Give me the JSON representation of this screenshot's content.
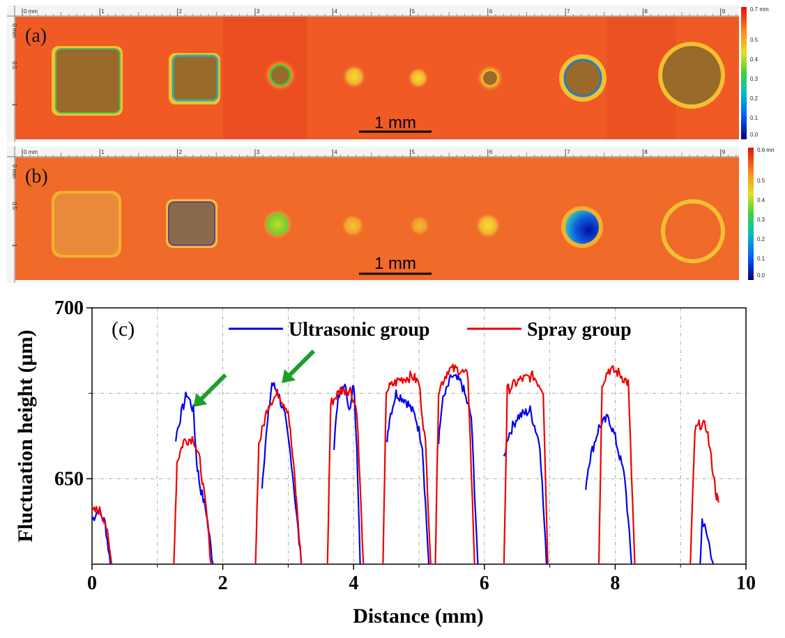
{
  "panel_a": {
    "label": "(a)",
    "ruler_ticks": [
      "0 mm",
      "1",
      "2",
      "3",
      "4",
      "5",
      "6",
      "7",
      "8",
      "9"
    ],
    "side_ticks": [
      "0 mm",
      "0.5",
      "1"
    ],
    "colorbar_labels": [
      "0.7 mm",
      "0.5",
      "0.4",
      "0.3",
      "0.2",
      "0.1",
      "0.0"
    ],
    "scale_bar": "1 mm"
  },
  "panel_b": {
    "label": "(b)",
    "ruler_ticks": [
      "0 mm",
      "1",
      "2",
      "3",
      "4",
      "5",
      "6",
      "7",
      "8",
      "9"
    ],
    "side_ticks": [
      "0 mm",
      "0.5",
      "1"
    ],
    "colorbar_labels": [
      "0.6 mm",
      "0.5",
      "0.4",
      "0.3",
      "0.2",
      "0.1",
      "0.0"
    ],
    "scale_bar": "1 mm"
  },
  "colors": {
    "map_bg": "#ef5a25",
    "crater": "#9a6a2a",
    "ultrasonic": "#0000ee",
    "spray": "#ee0000",
    "arrow": "#1e9e2a"
  },
  "chart_data": {
    "type": "line",
    "panel_label": "(c)",
    "xlabel": "Distance (mm)",
    "ylabel": "Fluctuation height (μm)",
    "xlim": [
      0,
      10
    ],
    "ylim": [
      625,
      700
    ],
    "xticks": [
      0,
      2,
      4,
      6,
      8,
      10
    ],
    "yticks": [
      650,
      700
    ],
    "grid": true,
    "legend": "top-center",
    "annotations": [
      {
        "type": "arrow",
        "x": 1.55,
        "y": 671
      },
      {
        "type": "arrow",
        "x": 2.9,
        "y": 678
      }
    ],
    "series": [
      {
        "name": "Ultrasonic group",
        "color": "#0000ee",
        "segments": [
          {
            "x": [
              0.0,
              0.1,
              0.2,
              0.28
            ],
            "y": [
              638,
              641,
              637,
              625
            ]
          },
          {
            "x": [
              1.28,
              1.35,
              1.45,
              1.55,
              1.6,
              1.65,
              1.75,
              1.85
            ],
            "y": [
              662,
              668,
              675,
              670,
              655,
              648,
              640,
              625
            ]
          },
          {
            "x": [
              2.6,
              2.65,
              2.75,
              2.85,
              2.95,
              3.05,
              3.2
            ],
            "y": [
              648,
              660,
              678,
              675,
              668,
              655,
              625
            ]
          },
          {
            "x": [
              3.7,
              3.75,
              3.85,
              3.95,
              4.0,
              4.05,
              4.1
            ],
            "y": [
              660,
              672,
              678,
              670,
              678,
              660,
              625
            ]
          },
          {
            "x": [
              4.5,
              4.55,
              4.65,
              4.8,
              4.95,
              5.05,
              5.15
            ],
            "y": [
              660,
              668,
              675,
              673,
              668,
              660,
              625
            ]
          },
          {
            "x": [
              5.3,
              5.35,
              5.5,
              5.65,
              5.8,
              5.9
            ],
            "y": [
              660,
              672,
              680,
              678,
              668,
              625
            ]
          },
          {
            "x": [
              6.3,
              6.35,
              6.5,
              6.7,
              6.85,
              6.95
            ],
            "y": [
              655,
              662,
              668,
              670,
              660,
              625
            ]
          },
          {
            "x": [
              7.55,
              7.6,
              7.75,
              7.9,
              8.0,
              8.15,
              8.25
            ],
            "y": [
              648,
              655,
              665,
              668,
              662,
              650,
              625
            ]
          },
          {
            "x": [
              9.3,
              9.33,
              9.38,
              9.45,
              9.5
            ],
            "y": [
              625,
              638,
              635,
              630,
              625
            ]
          }
        ]
      },
      {
        "name": "Spray group",
        "color": "#ee0000",
        "segments": [
          {
            "x": [
              0.0,
              0.1,
              0.2,
              0.3
            ],
            "y": [
              640,
              641,
              638,
              625
            ]
          },
          {
            "x": [
              1.25,
              1.3,
              1.4,
              1.55,
              1.65,
              1.75,
              1.82
            ],
            "y": [
              625,
              655,
              661,
              662,
              655,
              640,
              625
            ]
          },
          {
            "x": [
              2.5,
              2.55,
              2.7,
              2.85,
              3.0,
              3.1,
              3.2
            ],
            "y": [
              625,
              660,
              672,
              675,
              670,
              650,
              625
            ]
          },
          {
            "x": [
              3.6,
              3.65,
              3.8,
              3.95,
              4.05,
              4.15
            ],
            "y": [
              625,
              672,
              676,
              676,
              670,
              625
            ]
          },
          {
            "x": [
              4.45,
              4.5,
              4.7,
              4.9,
              5.0,
              5.1,
              5.18
            ],
            "y": [
              625,
              676,
              679,
              680,
              678,
              660,
              625
            ]
          },
          {
            "x": [
              5.25,
              5.3,
              5.45,
              5.6,
              5.75,
              5.85
            ],
            "y": [
              625,
              676,
              682,
              682,
              680,
              625
            ]
          },
          {
            "x": [
              6.3,
              6.35,
              6.55,
              6.75,
              6.9,
              6.97
            ],
            "y": [
              625,
              676,
              679,
              680,
              676,
              625
            ]
          },
          {
            "x": [
              7.75,
              7.8,
              7.9,
              8.05,
              8.2,
              8.3
            ],
            "y": [
              625,
              678,
              682,
              681,
              678,
              625
            ]
          },
          {
            "x": [
              9.15,
              9.22,
              9.3,
              9.4,
              9.55,
              9.58
            ],
            "y": [
              625,
              664,
              666,
              665,
              645,
              643
            ]
          }
        ]
      }
    ]
  }
}
